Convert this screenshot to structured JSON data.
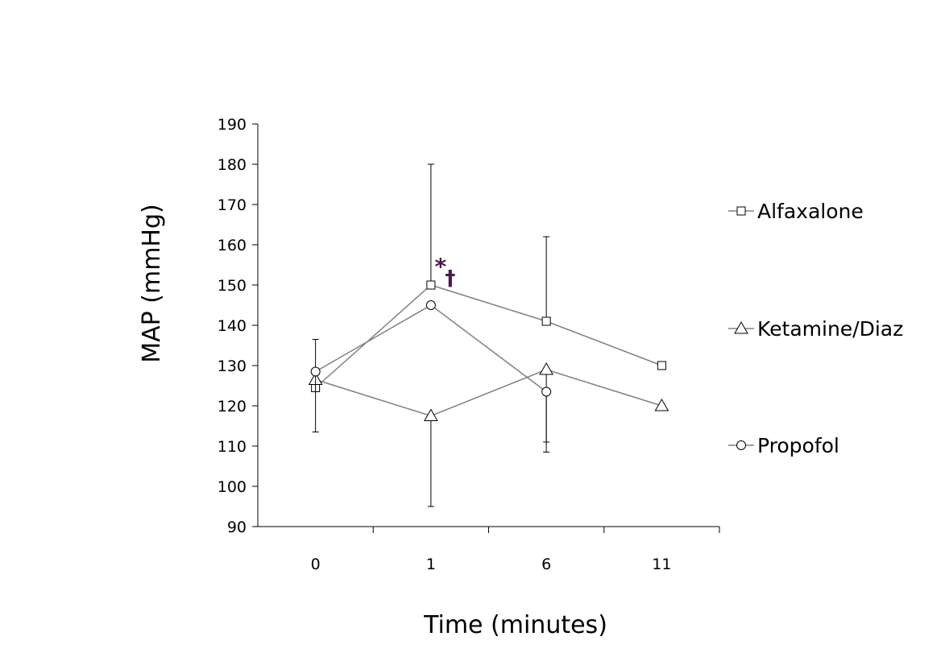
{
  "chart_data": {
    "type": "line",
    "title": "",
    "xlabel": "Time (minutes)",
    "ylabel": "MAP (mmHg)",
    "categories": [
      "0",
      "1",
      "6",
      "11"
    ],
    "ylim": [
      90,
      190
    ],
    "yticks": [
      90,
      100,
      110,
      120,
      130,
      140,
      150,
      160,
      170,
      180,
      190
    ],
    "grid": false,
    "legend_position": "right",
    "series": [
      {
        "name": "Alfaxalone",
        "marker": "square",
        "values": [
          124.5,
          150,
          141,
          130
        ],
        "error_upper": [
          null,
          180,
          162,
          null
        ],
        "error_lower": [
          null,
          null,
          null,
          null
        ]
      },
      {
        "name": "Ketamine/Diaz",
        "marker": "triangle",
        "values": [
          126.5,
          117.5,
          129,
          120
        ],
        "error_upper": [
          null,
          null,
          null,
          null
        ],
        "error_lower": [
          null,
          95,
          111,
          null
        ]
      },
      {
        "name": "Propofol",
        "marker": "circle",
        "values": [
          128.5,
          145,
          123.5,
          null
        ],
        "error_upper": [
          136.5,
          null,
          null,
          null
        ],
        "error_lower": [
          113.5,
          null,
          108.5,
          null
        ]
      }
    ],
    "annotations": [
      {
        "text": "*",
        "category": "1",
        "y": 155.5,
        "kind": "star"
      },
      {
        "text": "†",
        "category": "1",
        "y": 152,
        "kind": "dagger"
      }
    ],
    "colors": {
      "line": "#808080",
      "marker_stroke": "#000000",
      "marker_fill": "#ffffff",
      "axis": "#000000",
      "annotation": "#4a1a4a"
    }
  }
}
